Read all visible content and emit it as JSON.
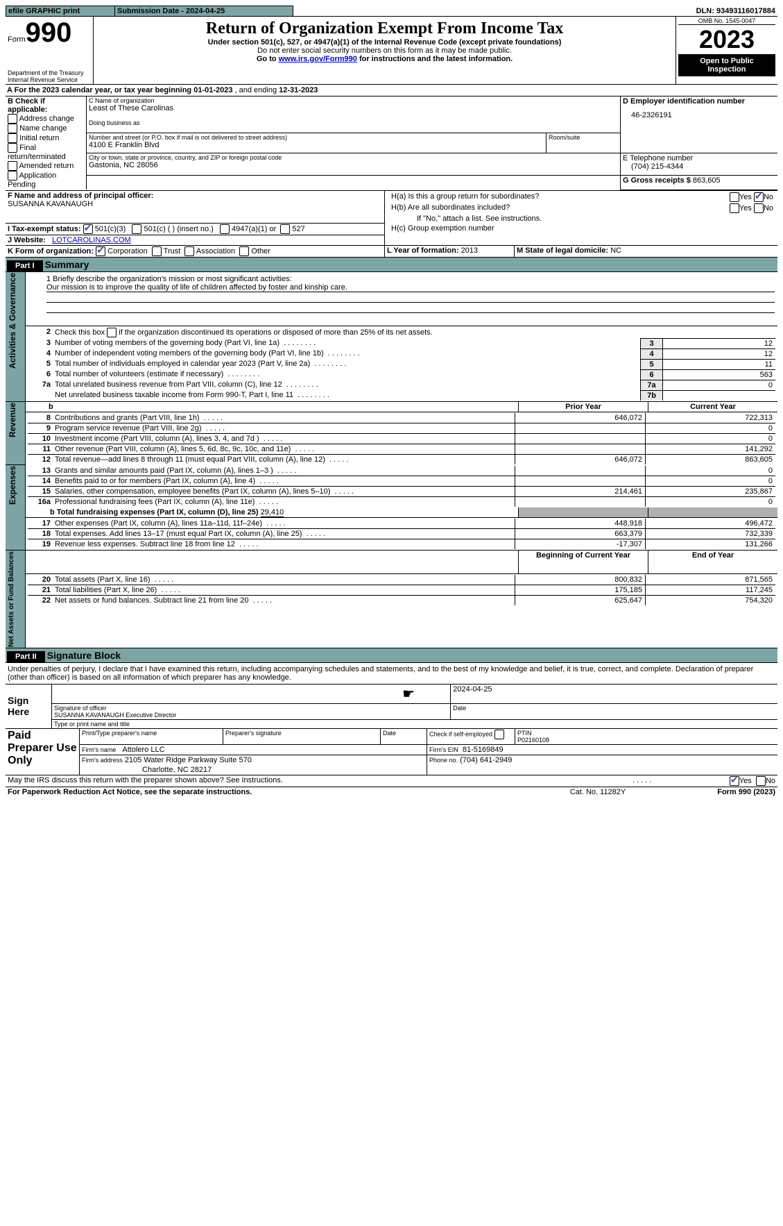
{
  "topbar": {
    "efile": "efile GRAPHIC print",
    "submission": "Submission Date - 2024-04-25",
    "dln_label": "DLN:",
    "dln": "93493116017884"
  },
  "header": {
    "form": "Form",
    "form_no": "990",
    "dept": "Department of the Treasury Internal Revenue Service",
    "title": "Return of Organization Exempt From Income Tax",
    "subtitle": "Under section 501(c), 527, or 4947(a)(1) of the Internal Revenue Code (except private foundations)",
    "warn": "Do not enter social security numbers on this form as it may be made public.",
    "goto_pre": "Go to ",
    "goto_link": "www.irs.gov/Form990",
    "goto_post": " for instructions and the latest information.",
    "omb": "OMB No. 1545-0047",
    "year": "2023",
    "open": "Open to Public Inspection"
  },
  "A": {
    "pre": "A For the 2023 calendar year, or tax year beginning ",
    "begin": "01-01-2023",
    "mid": " , and ending ",
    "end": "12-31-2023"
  },
  "B": {
    "label": "B Check if applicable:",
    "addr": "Address change",
    "name": "Name change",
    "init": "Initial return",
    "final": "Final return/terminated",
    "amend": "Amended return",
    "app": "Application Pending"
  },
  "C": {
    "name_label": "C Name of organization",
    "name": "Least of These Carolinas",
    "dba_label": "Doing business as",
    "street_label": "Number and street (or P.O. box if mail is not delivered to street address)",
    "street": "4100 E Franklin Blvd",
    "room_label": "Room/suite",
    "city_label": "City or town, state or province, country, and ZIP or foreign postal code",
    "city": "Gastonia, NC  28056"
  },
  "D": {
    "label": "D Employer identification number",
    "val": "46-2326191"
  },
  "E": {
    "label": "E Telephone number",
    "val": "(704) 215-4344"
  },
  "G": {
    "label": "G Gross receipts $",
    "val": "863,605"
  },
  "F": {
    "label": "F  Name and address of principal officer:",
    "val": "SUSANNA KAVANAUGH"
  },
  "H": {
    "a": "H(a)  Is this a group return for subordinates?",
    "b": "H(b)  Are all subordinates included?",
    "note": "If \"No,\" attach a list. See instructions.",
    "c": "H(c)  Group exemption number"
  },
  "I": {
    "label": "I  Tax-exempt status:",
    "c3": "501(c)(3)",
    "c": "501(c) (  ) (insert no.)",
    "a1": "4947(a)(1) or",
    "s527": "527"
  },
  "J": {
    "label": "J  Website:",
    "val": "LOTCAROLINAS.COM"
  },
  "K": {
    "label": "K Form of organization:",
    "corp": "Corporation",
    "trust": "Trust",
    "assoc": "Association",
    "other": "Other"
  },
  "L": {
    "label": "L Year of formation: ",
    "val": "2013"
  },
  "M": {
    "label": "M State of legal domicile: ",
    "val": "NC"
  },
  "yes": "Yes",
  "no": "No",
  "p1": {
    "title": "Part I",
    "label": "Summary"
  },
  "side": {
    "ag": "Activities & Governance",
    "rev": "Revenue",
    "exp": "Expenses",
    "na": "Net Assets or Fund Balances"
  },
  "l1": {
    "label": "1  Briefly describe the organization's mission or most significant activities:",
    "val": "Our mission is to improve the quality of life of children affected by foster and kinship care."
  },
  "l2": "2  Check this box  if the organization discontinued its operations or disposed of more than 25% of its net assets.",
  "rows": [
    {
      "n": "3",
      "t": "Number of voting members of the governing body (Part VI, line 1a)",
      "b": "3",
      "v": "12"
    },
    {
      "n": "4",
      "t": "Number of independent voting members of the governing body (Part VI, line 1b)",
      "b": "4",
      "v": "12"
    },
    {
      "n": "5",
      "t": "Total number of individuals employed in calendar year 2023 (Part V, line 2a)",
      "b": "5",
      "v": "11"
    },
    {
      "n": "6",
      "t": "Total number of volunteers (estimate if necessary)",
      "b": "6",
      "v": "563"
    },
    {
      "n": "7a",
      "t": "Total unrelated business revenue from Part VIII, column (C), line 12",
      "b": "7a",
      "v": "0"
    },
    {
      "n": "",
      "t": "Net unrelated business taxable income from Form 990-T, Part I, line 11",
      "b": "7b",
      "v": ""
    }
  ],
  "hdr": {
    "prior": "Prior Year",
    "curr": "Current Year",
    "boy": "Beginning of Current Year",
    "eoy": "End of Year"
  },
  "rev": [
    {
      "n": "8",
      "t": "Contributions and grants (Part VIII, line 1h)",
      "p": "646,072",
      "c": "722,313"
    },
    {
      "n": "9",
      "t": "Program service revenue (Part VIII, line 2g)",
      "p": "",
      "c": "0"
    },
    {
      "n": "10",
      "t": "Investment income (Part VIII, column (A), lines 3, 4, and 7d )",
      "p": "",
      "c": "0"
    },
    {
      "n": "11",
      "t": "Other revenue (Part VIII, column (A), lines 5, 6d, 8c, 9c, 10c, and 11e)",
      "p": "",
      "c": "141,292"
    },
    {
      "n": "12",
      "t": "Total revenue—add lines 8 through 11 (must equal Part VIII, column (A), line 12)",
      "p": "646,072",
      "c": "863,605"
    }
  ],
  "exp": [
    {
      "n": "13",
      "t": "Grants and similar amounts paid (Part IX, column (A), lines 1–3 )",
      "p": "",
      "c": "0"
    },
    {
      "n": "14",
      "t": "Benefits paid to or for members (Part IX, column (A), line 4)",
      "p": "",
      "c": "0"
    },
    {
      "n": "15",
      "t": "Salaries, other compensation, employee benefits (Part IX, column (A), lines 5–10)",
      "p": "214,461",
      "c": "235,867"
    },
    {
      "n": "16a",
      "t": "Professional fundraising fees (Part IX, column (A), line 11e)",
      "p": "",
      "c": "0"
    }
  ],
  "l16b": {
    "pre": "b  Total fundraising expenses (Part IX, column (D), line 25) ",
    "val": "29,410"
  },
  "exp2": [
    {
      "n": "17",
      "t": "Other expenses (Part IX, column (A), lines 11a–11d, 11f–24e)",
      "p": "448,918",
      "c": "496,472"
    },
    {
      "n": "18",
      "t": "Total expenses. Add lines 13–17 (must equal Part IX, column (A), line 25)",
      "p": "663,379",
      "c": "732,339"
    },
    {
      "n": "19",
      "t": "Revenue less expenses. Subtract line 18 from line 12",
      "p": "-17,307",
      "c": "131,266"
    }
  ],
  "na": [
    {
      "n": "20",
      "t": "Total assets (Part X, line 16)",
      "p": "800,832",
      "c": "871,565"
    },
    {
      "n": "21",
      "t": "Total liabilities (Part X, line 26)",
      "p": "175,185",
      "c": "117,245"
    },
    {
      "n": "22",
      "t": "Net assets or fund balances. Subtract line 21 from line 20",
      "p": "625,647",
      "c": "754,320"
    }
  ],
  "p2": {
    "title": "Part II",
    "label": "Signature Block"
  },
  "decl": "Under penalties of perjury, I declare that I have examined this return, including accompanying schedules and statements, and to the best of my knowledge and belief, it is true, correct, and complete. Declaration of preparer (other than officer) is based on all information of which preparer has any knowledge.",
  "sign": {
    "here": "Sign Here",
    "sig": "Signature of officer",
    "date": "Date",
    "officer": "SUSANNA KAVANAUGH  Executive Director",
    "type": "Type or print name and title",
    "sig_date": "2024-04-25"
  },
  "prep": {
    "title": "Paid Preparer Use Only",
    "name_label": "Print/Type preparer's name",
    "sig_label": "Preparer's signature",
    "date": "Date",
    "check": "Check  if self-employed",
    "ptin_label": "PTIN",
    "ptin": "P02160108",
    "firm_label": "Firm's name",
    "firm": "Attolero LLC",
    "ein_label": "Firm's EIN",
    "ein": "81-5169849",
    "addr_label": "Firm's address",
    "addr1": "2105 Water Ridge Parkway Suite 570",
    "addr2": "Charlotte, NC  28217",
    "phone_label": "Phone no.",
    "phone": "(704) 641-2949"
  },
  "discuss": "May the IRS discuss this return with the preparer shown above? See Instructions.",
  "footer": {
    "l": "For Paperwork Reduction Act Notice, see the separate instructions.",
    "m": "Cat. No. 11282Y",
    "r": "Form 990 (2023)"
  }
}
